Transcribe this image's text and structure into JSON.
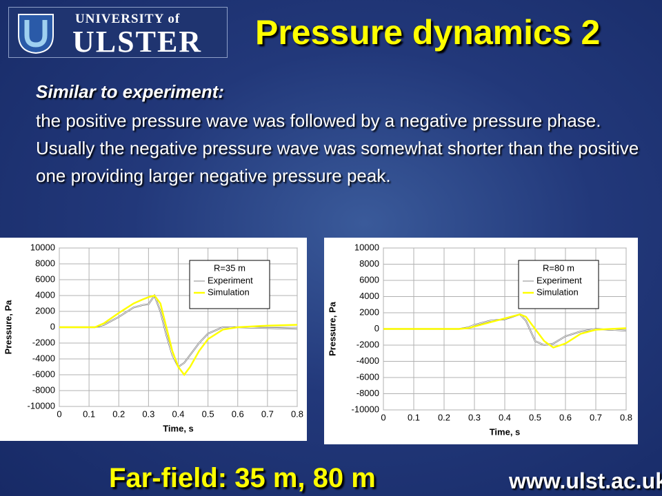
{
  "header": {
    "logo_top": "UNIVERSITY of",
    "logo_main": "ULSTER",
    "title": "Pressure dynamics 2"
  },
  "body": {
    "subtitle": "Similar to experiment:",
    "text": "the positive pressure wave was followed by a negative pressure phase. Usually the negative pressure wave was somewhat shorter than the positive one providing larger negative pressure peak."
  },
  "footer": {
    "caption": "Far-field: 35 m, 80 m",
    "url": "www.ulst.ac.uk"
  },
  "chart_data": [
    {
      "type": "line",
      "xlabel": "Time, s",
      "ylabel": "Pressure, Pa",
      "legend_title": "R=35 m",
      "legend": "upper right",
      "grid": true,
      "x": [
        0,
        0.05,
        0.1,
        0.12,
        0.15,
        0.2,
        0.25,
        0.28,
        0.3,
        0.32,
        0.34,
        0.36,
        0.38,
        0.4,
        0.42,
        0.44,
        0.47,
        0.5,
        0.55,
        0.6,
        0.7,
        0.8
      ],
      "series": [
        {
          "name": "Experiment",
          "color": "#ffffff",
          "values": [
            0,
            0,
            0,
            0,
            300,
            1300,
            2500,
            2800,
            2900,
            4000,
            2000,
            -1000,
            -3500,
            -5000,
            -4500,
            -3500,
            -2000,
            -800,
            0,
            0,
            -100,
            -200
          ]
        },
        {
          "name": "Simulation",
          "color": "#ffff00",
          "values": [
            0,
            0,
            0,
            0,
            500,
            1800,
            3000,
            3500,
            3800,
            4000,
            3000,
            0,
            -3000,
            -5000,
            -6000,
            -5000,
            -3000,
            -1500,
            -300,
            0,
            200,
            300
          ]
        }
      ],
      "xlim": [
        0,
        0.8
      ],
      "xticks": [
        0,
        0.1,
        0.2,
        0.3,
        0.4,
        0.5,
        0.6,
        0.7,
        0.8
      ],
      "ylim": [
        -10000,
        10000
      ],
      "yticks": [
        -10000,
        -8000,
        -6000,
        -4000,
        -2000,
        0,
        2000,
        4000,
        6000,
        8000,
        10000
      ]
    },
    {
      "type": "line",
      "xlabel": "Time, s",
      "ylabel": "Pressure, Pa",
      "legend_title": "R=80 m",
      "legend": "upper right",
      "grid": true,
      "x": [
        0,
        0.1,
        0.2,
        0.25,
        0.28,
        0.3,
        0.35,
        0.4,
        0.45,
        0.47,
        0.5,
        0.53,
        0.56,
        0.6,
        0.65,
        0.7,
        0.8
      ],
      "series": [
        {
          "name": "Experiment",
          "color": "#ffffff",
          "values": [
            0,
            0,
            0,
            0,
            200,
            500,
            1000,
            1200,
            1800,
            1000,
            -1500,
            -2000,
            -1800,
            -900,
            -300,
            0,
            -200
          ]
        },
        {
          "name": "Simulation",
          "color": "#ffff00",
          "values": [
            0,
            0,
            0,
            0,
            100,
            300,
            800,
            1300,
            1800,
            1500,
            0,
            -1500,
            -2300,
            -1800,
            -600,
            -100,
            100
          ]
        }
      ],
      "xlim": [
        0,
        0.8
      ],
      "xticks": [
        0,
        0.1,
        0.2,
        0.3,
        0.4,
        0.5,
        0.6,
        0.7,
        0.8
      ],
      "ylim": [
        -10000,
        10000
      ],
      "yticks": [
        -10000,
        -8000,
        -6000,
        -4000,
        -2000,
        0,
        2000,
        4000,
        6000,
        8000,
        10000
      ]
    }
  ]
}
